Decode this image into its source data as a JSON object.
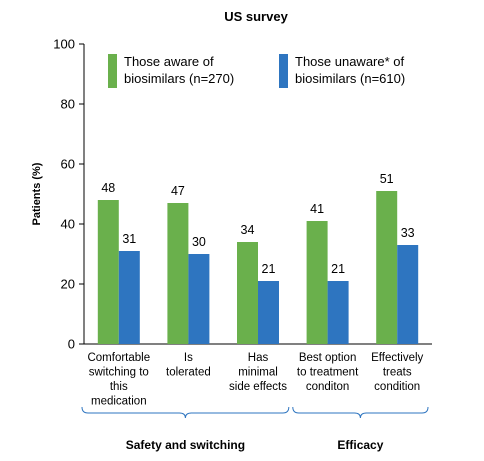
{
  "chart_data": {
    "type": "bar",
    "title": "US survey",
    "ylabel": "Patients (%)",
    "xlabel": "",
    "ylim": [
      0,
      100
    ],
    "yticks": [
      0,
      20,
      40,
      60,
      80,
      100
    ],
    "categories": [
      [
        "Comfortable",
        "switching to",
        "this",
        "medication"
      ],
      [
        "Is",
        "tolerated"
      ],
      [
        "Has",
        "minimal",
        "side effects"
      ],
      [
        "Best option",
        "to treatment",
        "conditon"
      ],
      [
        "Effectively",
        "treats",
        "condition"
      ]
    ],
    "series": [
      {
        "name": [
          "Those aware of",
          "biosimilars (n=270)"
        ],
        "color": "#6ab04c",
        "values": [
          48,
          47,
          34,
          41,
          51
        ]
      },
      {
        "name": [
          "Those unaware* of",
          "biosimilars (n=610)"
        ],
        "color": "#2e75c0",
        "values": [
          31,
          30,
          21,
          21,
          33
        ]
      }
    ],
    "groups": [
      {
        "label": "Safety and switching",
        "categories": [
          0,
          1,
          2
        ]
      },
      {
        "label": "Efficacy",
        "categories": [
          3,
          4
        ]
      }
    ],
    "grid": false,
    "legend_position": "top"
  }
}
